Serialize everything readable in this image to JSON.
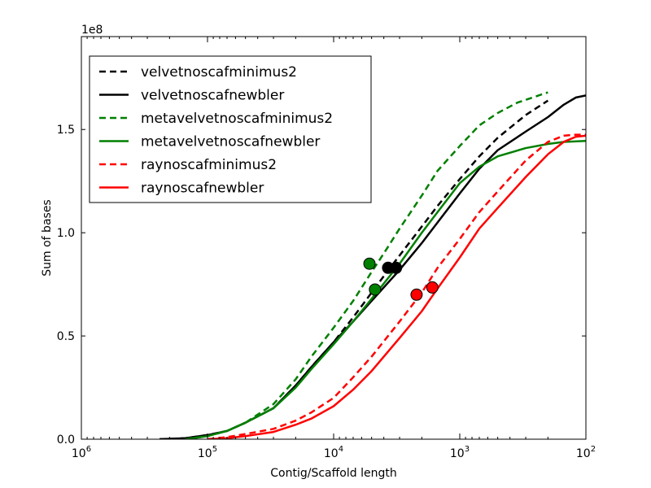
{
  "chart_data": {
    "type": "line",
    "title": "",
    "xlabel": "Contig/Scaffold length",
    "ylabel": "Sum of bases",
    "y_scale_note": "1e8",
    "x_scale": "log",
    "x_inverted": true,
    "xlim": [
      1000000,
      100
    ],
    "ylim": [
      0,
      1.95
    ],
    "x_ticks": [
      {
        "value": 1000000,
        "base": "10",
        "exp": "6"
      },
      {
        "value": 100000,
        "base": "10",
        "exp": "5"
      },
      {
        "value": 10000,
        "base": "10",
        "exp": "4"
      },
      {
        "value": 1000,
        "base": "10",
        "exp": "3"
      },
      {
        "value": 100,
        "base": "10",
        "exp": "2"
      }
    ],
    "y_ticks": [
      {
        "value": 0.0,
        "label": "0.0"
      },
      {
        "value": 0.5,
        "label": "0.5"
      },
      {
        "value": 1.0,
        "label": "1.0"
      },
      {
        "value": 1.5,
        "label": "1.5"
      }
    ],
    "grid": false,
    "legend_position": "top-left",
    "series": [
      {
        "name": "velvetnoscafminimus2",
        "color": "#000000",
        "dash": "dashed",
        "points": [
          [
            240000,
            0
          ],
          [
            150000,
            0.005
          ],
          [
            100000,
            0.02
          ],
          [
            70000,
            0.04
          ],
          [
            50000,
            0.08
          ],
          [
            30000,
            0.15
          ],
          [
            20000,
            0.26
          ],
          [
            15000,
            0.35
          ],
          [
            10000,
            0.47
          ],
          [
            7000,
            0.59
          ],
          [
            5000,
            0.71
          ],
          [
            4000,
            0.79
          ],
          [
            3000,
            0.89
          ],
          [
            2000,
            1.03
          ],
          [
            1500,
            1.13
          ],
          [
            1000,
            1.26
          ],
          [
            700,
            1.37
          ],
          [
            500,
            1.46
          ],
          [
            300,
            1.57
          ],
          [
            200,
            1.64
          ]
        ],
        "marker": [
          3700,
          0.83
        ]
      },
      {
        "name": "velvetnoscafnewbler",
        "color": "#000000",
        "dash": "solid",
        "points": [
          [
            240000,
            0
          ],
          [
            150000,
            0.005
          ],
          [
            100000,
            0.02
          ],
          [
            70000,
            0.04
          ],
          [
            50000,
            0.08
          ],
          [
            30000,
            0.15
          ],
          [
            20000,
            0.26
          ],
          [
            15000,
            0.35
          ],
          [
            10000,
            0.47
          ],
          [
            7000,
            0.57
          ],
          [
            5000,
            0.67
          ],
          [
            3000,
            0.82
          ],
          [
            2000,
            0.95
          ],
          [
            1500,
            1.05
          ],
          [
            1000,
            1.19
          ],
          [
            700,
            1.31
          ],
          [
            500,
            1.4
          ],
          [
            300,
            1.49
          ],
          [
            200,
            1.56
          ],
          [
            150,
            1.62
          ],
          [
            120,
            1.655
          ],
          [
            100,
            1.665
          ]
        ],
        "marker": [
          3200,
          0.83
        ]
      },
      {
        "name": "metavelvetnoscafminimus2",
        "color": "#008000",
        "dash": "dashed",
        "points": [
          [
            150000,
            0
          ],
          [
            100000,
            0.015
          ],
          [
            70000,
            0.04
          ],
          [
            50000,
            0.08
          ],
          [
            30000,
            0.17
          ],
          [
            20000,
            0.29
          ],
          [
            15000,
            0.4
          ],
          [
            10000,
            0.54
          ],
          [
            7000,
            0.67
          ],
          [
            5000,
            0.81
          ],
          [
            4000,
            0.9
          ],
          [
            3000,
            1.02
          ],
          [
            2000,
            1.18
          ],
          [
            1500,
            1.3
          ],
          [
            1000,
            1.42
          ],
          [
            700,
            1.52
          ],
          [
            500,
            1.58
          ],
          [
            350,
            1.63
          ],
          [
            250,
            1.66
          ],
          [
            200,
            1.68
          ]
        ],
        "marker": [
          5200,
          0.85
        ]
      },
      {
        "name": "metavelvetnoscafnewbler",
        "color": "#008000",
        "dash": "solid",
        "points": [
          [
            150000,
            0
          ],
          [
            100000,
            0.015
          ],
          [
            70000,
            0.04
          ],
          [
            50000,
            0.08
          ],
          [
            30000,
            0.15
          ],
          [
            20000,
            0.25
          ],
          [
            15000,
            0.34
          ],
          [
            10000,
            0.46
          ],
          [
            7000,
            0.57
          ],
          [
            5000,
            0.68
          ],
          [
            3000,
            0.85
          ],
          [
            2000,
            1.0
          ],
          [
            1500,
            1.1
          ],
          [
            1000,
            1.24
          ],
          [
            700,
            1.32
          ],
          [
            500,
            1.37
          ],
          [
            300,
            1.41
          ],
          [
            200,
            1.43
          ],
          [
            150,
            1.44
          ],
          [
            100,
            1.445
          ]
        ],
        "marker": [
          4700,
          0.725
        ]
      },
      {
        "name": "raynoscafminimus2",
        "color": "#ff0000",
        "dash": "dashed",
        "points": [
          [
            100000,
            0
          ],
          [
            70000,
            0.01
          ],
          [
            50000,
            0.025
          ],
          [
            30000,
            0.05
          ],
          [
            20000,
            0.09
          ],
          [
            15000,
            0.13
          ],
          [
            10000,
            0.2
          ],
          [
            7000,
            0.3
          ],
          [
            5000,
            0.4
          ],
          [
            3000,
            0.57
          ],
          [
            2000,
            0.71
          ],
          [
            1500,
            0.83
          ],
          [
            1000,
            0.97
          ],
          [
            700,
            1.1
          ],
          [
            500,
            1.2
          ],
          [
            300,
            1.35
          ],
          [
            200,
            1.44
          ],
          [
            150,
            1.47
          ],
          [
            120,
            1.475
          ],
          [
            100,
            1.475
          ]
        ],
        "marker": [
          2200,
          0.7
        ]
      },
      {
        "name": "raynoscafnewbler",
        "color": "#ff0000",
        "dash": "solid",
        "points": [
          [
            100000,
            0
          ],
          [
            70000,
            0.005
          ],
          [
            50000,
            0.015
          ],
          [
            30000,
            0.035
          ],
          [
            20000,
            0.07
          ],
          [
            15000,
            0.1
          ],
          [
            10000,
            0.16
          ],
          [
            7000,
            0.24
          ],
          [
            5000,
            0.33
          ],
          [
            3000,
            0.49
          ],
          [
            2000,
            0.62
          ],
          [
            1500,
            0.73
          ],
          [
            1000,
            0.88
          ],
          [
            700,
            1.02
          ],
          [
            500,
            1.12
          ],
          [
            300,
            1.27
          ],
          [
            200,
            1.38
          ],
          [
            150,
            1.44
          ],
          [
            120,
            1.465
          ],
          [
            100,
            1.47
          ]
        ],
        "marker": [
          1650,
          0.735
        ]
      }
    ]
  }
}
